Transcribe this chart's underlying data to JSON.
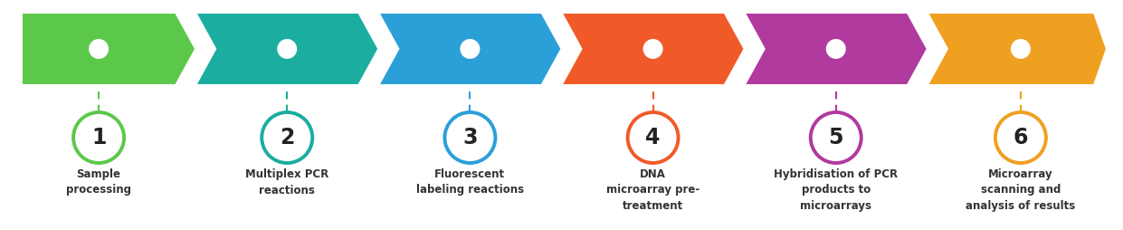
{
  "steps": [
    {
      "num": "1",
      "label": "Sample\nprocessing",
      "color": "#5cc84a",
      "circle_color": "#5cc84a"
    },
    {
      "num": "2",
      "label": "Multiplex PCR\nreactions",
      "color": "#1aada0",
      "circle_color": "#1aada0"
    },
    {
      "num": "3",
      "label": "Fluorescent\nlabeling reactions",
      "color": "#2b9fd8",
      "circle_color": "#2b9fd8"
    },
    {
      "num": "4",
      "label": "DNA\nmicroarray pre-\ntreatment",
      "color": "#f05a28",
      "circle_color": "#f05a28"
    },
    {
      "num": "5",
      "label": "Hybridisation of PCR\nproducts to\nmicroarrays",
      "color": "#b03a9e",
      "circle_color": "#b03a9e"
    },
    {
      "num": "6",
      "label": "Microarray\nscanning and\nanalysis of results",
      "color": "#f0a020",
      "circle_color": "#f0a020"
    }
  ],
  "bg_color": "#ffffff",
  "fig_w": 12.41,
  "fig_h": 2.54,
  "dpi": 100
}
